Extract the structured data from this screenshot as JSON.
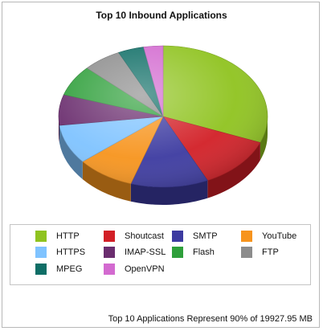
{
  "chart_data": {
    "type": "pie",
    "title": "Top 10 Inbound Applications",
    "series": [
      {
        "name": "HTTP",
        "value": 31,
        "color": "#8fc31f"
      },
      {
        "name": "Shoutcast",
        "value": 12,
        "color": "#d21f26"
      },
      {
        "name": "SMTP",
        "value": 12,
        "color": "#3c3aa0"
      },
      {
        "name": "YouTube",
        "value": 9,
        "color": "#f7941d"
      },
      {
        "name": "HTTPS",
        "value": 9,
        "color": "#7fc3ff"
      },
      {
        "name": "IMAP-SSL",
        "value": 7,
        "color": "#6a2d6e"
      },
      {
        "name": "Flash",
        "value": 7,
        "color": "#2e9f3a"
      },
      {
        "name": "FTP",
        "value": 6,
        "color": "#8c8c8c"
      },
      {
        "name": "MPEG",
        "value": 4,
        "color": "#0f6e66"
      },
      {
        "name": "OpenVPN",
        "value": 3,
        "color": "#d36ad0"
      }
    ],
    "legend_position": "bottom",
    "rendering": "3d"
  },
  "legend": {
    "items": [
      "HTTP",
      "Shoutcast",
      "SMTP",
      "YouTube",
      "HTTPS",
      "IMAP-SSL",
      "Flash",
      "FTP",
      "MPEG",
      "OpenVPN"
    ]
  },
  "footer": "Top 10 Applications Represent 90% of 19927.95 MB"
}
